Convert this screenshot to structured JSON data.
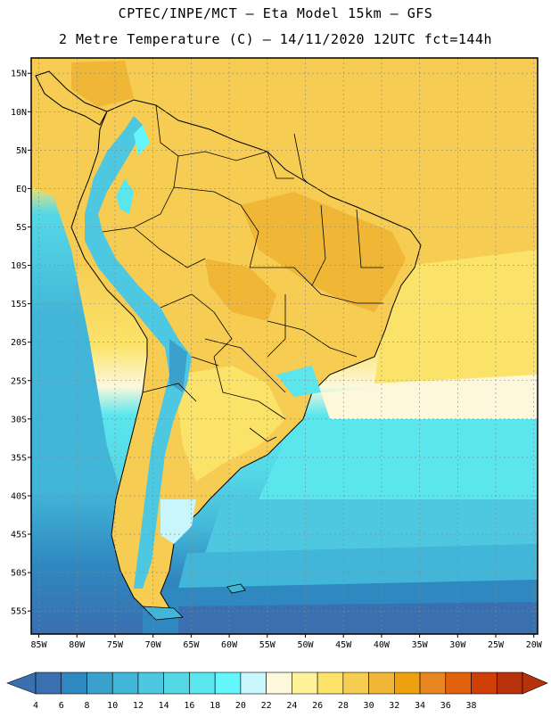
{
  "header": {
    "line1": "CPTEC/INPE/MCT –  Eta Model 15km – GFS",
    "line2": "2 Metre Temperature (C) – 14/11/2020 12UTC fct=144h"
  },
  "map": {
    "lon_labels": [
      "85W",
      "80W",
      "75W",
      "70W",
      "65W",
      "60W",
      "55W",
      "50W",
      "45W",
      "40W",
      "35W",
      "30W",
      "25W",
      "20W"
    ],
    "lat_labels": [
      "15N",
      "10N",
      "5N",
      "EQ",
      "5S",
      "10S",
      "15S",
      "20S",
      "25S",
      "30S",
      "35S",
      "40S",
      "45S",
      "50S",
      "55S"
    ],
    "lon_range": [
      -86,
      -19.5
    ],
    "lat_range": [
      17,
      -58
    ],
    "grid": true
  },
  "colorbar": {
    "ticks": [
      "4",
      "6",
      "8",
      "10",
      "12",
      "14",
      "16",
      "18",
      "20",
      "22",
      "24",
      "26",
      "28",
      "30",
      "32",
      "34",
      "36",
      "38"
    ],
    "colors": [
      "#3a6fb0",
      "#2f88c0",
      "#3aa0cc",
      "#42b6d8",
      "#4dc8e0",
      "#55d8e6",
      "#5be6ee",
      "#64f6fa",
      "#c8f6fa",
      "#fdf8dc",
      "#fff39a",
      "#fbe36a",
      "#f6cc52",
      "#f0b736",
      "#eea10f",
      "#e88722",
      "#e1620d",
      "#cf3f06",
      "#b7310a"
    ],
    "under_color": "#3a6fb0",
    "over_color": "#b7310a"
  },
  "fields": {
    "ocean_south": "#3a6fb0",
    "ocean_mid": "#42b6d8",
    "ocean_cyan": "#5be6ee",
    "ocean_pale": "#fdf8dc",
    "ocean_yellow": "#fbe36a",
    "land_warm": "#f6cc52",
    "land_hot": "#f0b736",
    "andes_cold": "#4dc8e0"
  }
}
